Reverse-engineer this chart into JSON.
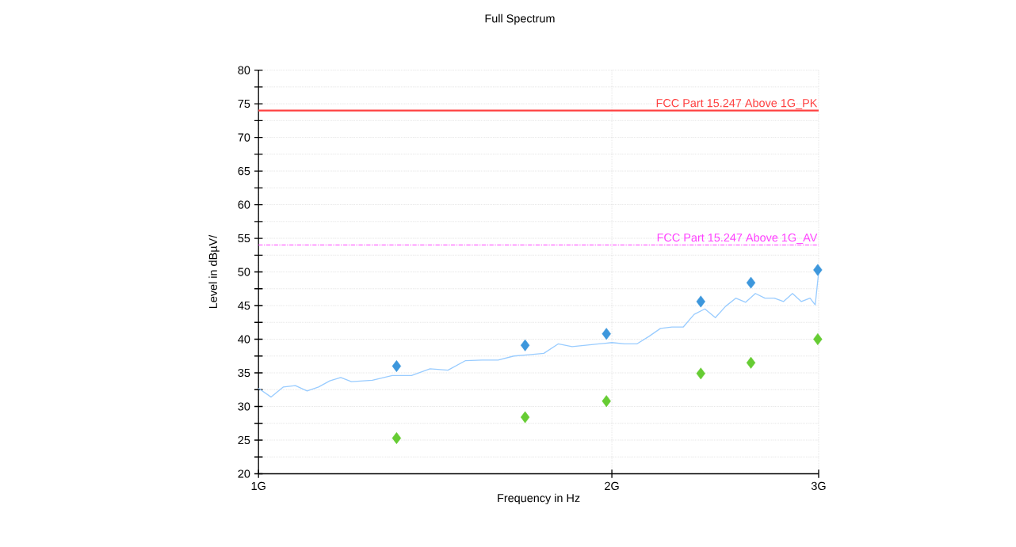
{
  "chart_data": {
    "type": "line",
    "title": "Full Spectrum",
    "xlabel": "Frequency in Hz",
    "ylabel": "Level in dBµV/",
    "log": "x",
    "grid": true,
    "xlim": [
      1,
      3
    ],
    "xticks": [
      {
        "value": 1,
        "label": "1G"
      },
      {
        "value": 2,
        "label": "2G"
      },
      {
        "value": 3,
        "label": "3G"
      }
    ],
    "ylim": [
      20,
      80
    ],
    "yticks": [
      20,
      {
        "value": 22.5,
        "label": null
      },
      25,
      {
        "value": 27.5,
        "label": null
      },
      30,
      {
        "value": 32.5,
        "label": null
      },
      35,
      {
        "value": 37.5,
        "label": null
      },
      40,
      {
        "value": 42.5,
        "label": null
      },
      45,
      {
        "value": 47.5,
        "label": null
      },
      50,
      {
        "value": 52.5,
        "label": null
      },
      55,
      {
        "value": 57.5,
        "label": null
      },
      60,
      {
        "value": 62.5,
        "label": null
      },
      65,
      {
        "value": 67.5,
        "label": null
      },
      70,
      {
        "value": 72.5,
        "label": null
      },
      75,
      {
        "value": 77.5,
        "label": null
      },
      80
    ],
    "series": [
      {
        "color": "#99ccff",
        "x": [
          1.0,
          1.025,
          1.05,
          1.075,
          1.1,
          1.125,
          1.15,
          1.175,
          1.2,
          1.25,
          1.3,
          1.35,
          1.4,
          1.45,
          1.5,
          1.55,
          1.6,
          1.65,
          1.7,
          1.75,
          1.8,
          1.85,
          1.9,
          1.95,
          2.0,
          2.05,
          2.1,
          2.15,
          2.2,
          2.25,
          2.3,
          2.35,
          2.4,
          2.45,
          2.5,
          2.55,
          2.6,
          2.65,
          2.7,
          2.75,
          2.8,
          2.85,
          2.9,
          2.95,
          2.98,
          3.0
        ],
        "values": [
          32.7,
          31.4,
          32.9,
          33.1,
          32.3,
          32.9,
          33.8,
          34.3,
          33.7,
          33.9,
          34.6,
          34.6,
          35.6,
          35.4,
          36.8,
          36.9,
          36.9,
          37.5,
          37.7,
          37.9,
          39.3,
          38.9,
          39.1,
          39.3,
          39.5,
          39.3,
          39.3,
          40.4,
          41.6,
          41.8,
          41.8,
          43.7,
          44.5,
          43.2,
          44.9,
          46.1,
          45.5,
          46.8,
          46.1,
          46.1,
          45.6,
          46.8,
          45.6,
          46.1,
          45.1,
          49.9
        ]
      },
      {
        "type": "scatter",
        "marker": "diamond",
        "color": "#3d97dc",
        "x": [
          1.311,
          1.687,
          1.979,
          2.381,
          2.627,
          2.995
        ],
        "values": [
          36.0,
          39.1,
          40.8,
          45.6,
          48.4,
          50.3
        ]
      },
      {
        "type": "scatter",
        "marker": "diamond",
        "color": "#66cc33",
        "x": [
          1.311,
          1.687,
          1.979,
          2.381,
          2.627,
          2.995
        ],
        "values": [
          25.3,
          28.4,
          30.8,
          34.9,
          36.5,
          40.0
        ]
      }
    ],
    "ref_lines": [
      {
        "axis": "y",
        "value": 74,
        "label": "FCC Part 15.247 Above 1G_PK",
        "color": "#ff4040",
        "line_style": "solid"
      },
      {
        "axis": "y",
        "value": 54,
        "label": "FCC Part 15.247 Above 1G_AV",
        "color": "#ff40ff",
        "line_style": "dashed"
      }
    ]
  }
}
